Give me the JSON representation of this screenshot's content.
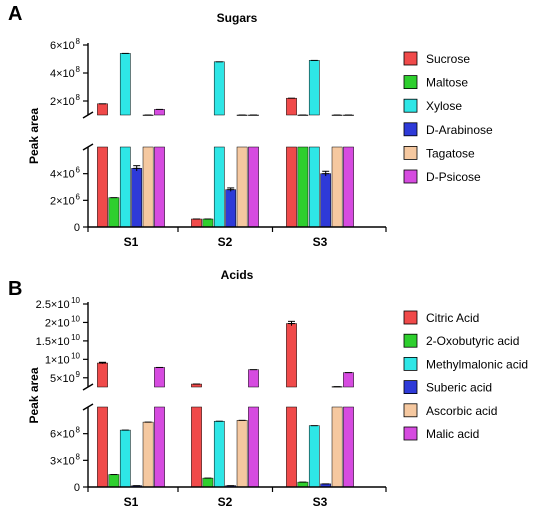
{
  "chart_data": [
    {
      "panel_label": "A",
      "type": "bar",
      "title": "Sugars",
      "ylabel": "Peak area",
      "xlabel": "",
      "axis_break": true,
      "categories": [
        "S1",
        "S2",
        "S3"
      ],
      "y_upper_ticks": [
        {
          "value": 200000000,
          "label": "2×10^8"
        },
        {
          "value": 400000000,
          "label": "4×10^8"
        },
        {
          "value": 600000000,
          "label": "6×10^8"
        }
      ],
      "y_lower_ticks": [
        {
          "value": 0,
          "label": "0"
        },
        {
          "value": 2000000,
          "label": "2×10^6"
        },
        {
          "value": 4000000,
          "label": "4×10^6"
        }
      ],
      "ylim_lower": [
        0,
        6000000
      ],
      "ylim_upper": [
        100000000,
        600000000
      ],
      "series": [
        {
          "name": "Sucrose",
          "color": "#F04A4A",
          "values": [
            180000000,
            600000,
            220000000
          ],
          "errors": [
            0,
            0,
            0
          ]
        },
        {
          "name": "Maltose",
          "color": "#2ECF2E",
          "values": [
            2200000,
            600000,
            50000000
          ],
          "errors": [
            0,
            0,
            0
          ]
        },
        {
          "name": "Xylose",
          "color": "#2EE6E6",
          "values": [
            540000000,
            480000000,
            490000000
          ],
          "errors": [
            0,
            0,
            0
          ]
        },
        {
          "name": "D-Arabinose",
          "color": "#2E3AD8",
          "values": [
            4400000,
            2800000,
            4000000
          ],
          "errors": [
            200000,
            130000,
            180000
          ]
        },
        {
          "name": "Tagatose",
          "color": "#F5C8A0",
          "values": [
            80000000,
            80000000,
            90000000
          ],
          "errors": [
            0,
            0,
            0
          ]
        },
        {
          "name": "D-Psicose",
          "color": "#D64BE0",
          "values": [
            140000000,
            100000000,
            90000000
          ],
          "errors": [
            0,
            0,
            0
          ]
        }
      ]
    },
    {
      "panel_label": "B",
      "type": "bar",
      "title": "Acids",
      "ylabel": "Peak area",
      "xlabel": "",
      "axis_break": true,
      "categories": [
        "S1",
        "S2",
        "S3"
      ],
      "y_upper_ticks": [
        {
          "value": 5000000000,
          "label": "5×10^9"
        },
        {
          "value": 10000000000,
          "label": "1×10^10"
        },
        {
          "value": 15000000000,
          "label": "1.5×10^10"
        },
        {
          "value": 20000000000,
          "label": "2×10^10"
        },
        {
          "value": 25000000000,
          "label": "2.5×10^10"
        }
      ],
      "y_lower_ticks": [
        {
          "value": 0,
          "label": "0"
        },
        {
          "value": 300000000,
          "label": "3×10^8"
        },
        {
          "value": 600000000,
          "label": "6×10^8"
        }
      ],
      "ylim_lower": [
        0,
        900000000
      ],
      "ylim_upper": [
        2500000000,
        25000000000
      ],
      "series": [
        {
          "name": "Citric Acid",
          "color": "#F04A4A",
          "values": [
            9000000000,
            3300000000,
            19700000000
          ],
          "errors": [
            200000000,
            0,
            600000000
          ]
        },
        {
          "name": "2-Oxobutyric acid",
          "color": "#2ECF2E",
          "values": [
            140000000,
            100000000,
            55000000
          ],
          "errors": [
            0,
            0,
            0
          ]
        },
        {
          "name": "Methylmalonic acid",
          "color": "#2EE6E6",
          "values": [
            640000000,
            740000000,
            690000000
          ],
          "errors": [
            0,
            0,
            0
          ]
        },
        {
          "name": "Suberic acid",
          "color": "#2E3AD8",
          "values": [
            15000000,
            15000000,
            35000000
          ],
          "errors": [
            0,
            0,
            0
          ]
        },
        {
          "name": "Ascorbic acid",
          "color": "#F5C8A0",
          "values": [
            730000000,
            750000000,
            2600000000
          ],
          "errors": [
            0,
            0,
            0
          ]
        },
        {
          "name": "Malic acid",
          "color": "#D64BE0",
          "values": [
            7800000000,
            7200000000,
            6400000000
          ],
          "errors": [
            0,
            0,
            0
          ]
        }
      ]
    }
  ]
}
